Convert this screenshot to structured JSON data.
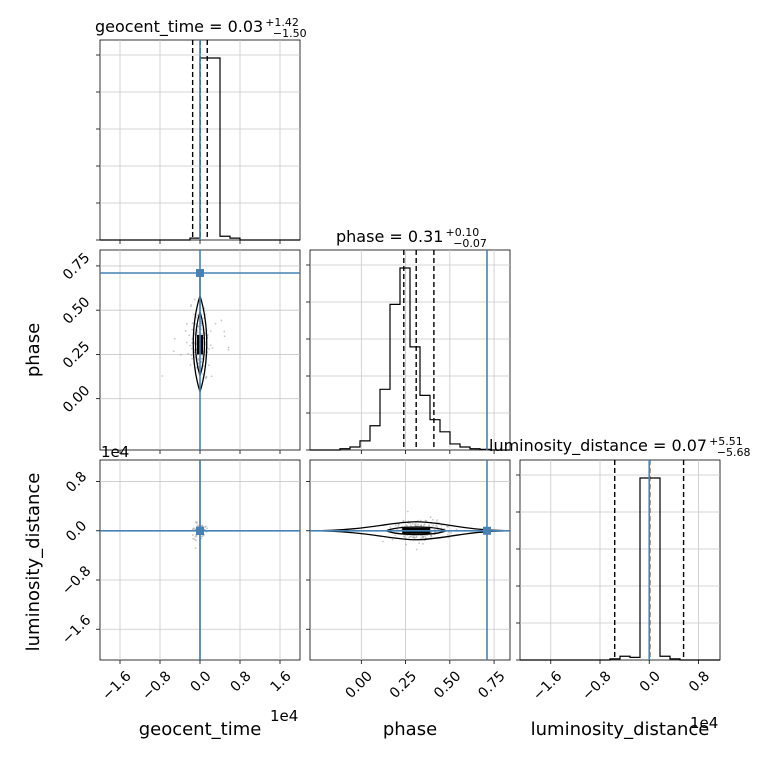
{
  "chart_data": {
    "type": "corner",
    "parameters": [
      "geocent_time",
      "phase",
      "luminosity_distance"
    ],
    "axis_labels": {
      "x": [
        "geocent_time",
        "phase",
        "luminosity_distance"
      ],
      "y": [
        "phase",
        "luminosity_distance"
      ]
    },
    "offset_labels": {
      "geocent_time": "1e4",
      "luminosity_distance": "1e4"
    },
    "titles": [
      {
        "param": "geocent_time",
        "text": "geocent_time = 0.03",
        "upper": "+1.42",
        "lower": "−1.50"
      },
      {
        "param": "phase",
        "text": "phase = 0.31",
        "upper": "+0.10",
        "lower": "−0.07"
      },
      {
        "param": "luminosity_distance",
        "text": "luminosity_distance = 0.07",
        "upper": "+5.51",
        "lower": "−5.68"
      }
    ],
    "ranges": {
      "geocent_time": [
        -20000,
        20000
      ],
      "phase": [
        -0.29,
        0.84
      ],
      "luminosity_distance": [
        -21000,
        11500
      ]
    },
    "ticks": {
      "geocent_time": {
        "values": [
          -16000,
          -8000,
          0,
          8000,
          16000
        ],
        "labels": [
          "−1.6",
          "−0.8",
          "0.0",
          "0.8",
          "1.6"
        ]
      },
      "phase_x": {
        "values": [
          0.0,
          0.25,
          0.5,
          0.75
        ],
        "labels": [
          "0.00",
          "0.25",
          "0.50",
          "0.75"
        ]
      },
      "phase_y": {
        "values": [
          0.0,
          0.25,
          0.5,
          0.75
        ],
        "labels": [
          "0.00",
          "0.25",
          "0.50",
          "0.75"
        ]
      },
      "luminosity_distance_x": {
        "values": [
          -16000,
          -8000,
          0,
          8000
        ],
        "labels": [
          "−1.6",
          "−0.8",
          "0.0",
          "0.8"
        ]
      },
      "luminosity_distance_y": {
        "values": [
          -16000,
          -8000,
          0,
          8000
        ],
        "labels": [
          "−1.6",
          "−0.8",
          "0.0",
          "0.8"
        ]
      }
    },
    "truths": {
      "geocent_time": 0,
      "phase": 0.71,
      "luminosity_distance": 0
    },
    "quantiles": {
      "geocent_time": [
        -1470,
        30,
        1450
      ],
      "phase": [
        0.24,
        0.31,
        0.41
      ],
      "luminosity_distance": [
        -5610,
        70,
        5580
      ]
    },
    "histograms": {
      "geocent_time": {
        "bins": [
          -20000,
          -18000,
          -16000,
          -14000,
          -12000,
          -10000,
          -8000,
          -6000,
          -4000,
          -2000,
          0,
          2000,
          4000,
          6000,
          8000,
          10000,
          12000,
          14000,
          16000,
          18000,
          20000
        ],
        "counts": [
          0,
          0,
          0,
          0,
          0,
          0,
          0,
          0,
          0,
          0.005,
          0.49,
          0.49,
          0.01,
          0.005,
          0,
          0,
          0,
          0,
          0,
          0
        ]
      },
      "phase": {
        "bins": [
          -0.29,
          -0.2335,
          -0.177,
          -0.1205,
          -0.064,
          -0.0075,
          0.049,
          0.1055,
          0.162,
          0.2185,
          0.275,
          0.3315,
          0.388,
          0.4445,
          0.501,
          0.5575,
          0.614,
          0.6705,
          0.727,
          0.7835,
          0.84
        ],
        "counts": [
          0,
          0,
          0,
          0.002,
          0.005,
          0.015,
          0.04,
          0.1,
          0.24,
          0.3,
          0.17,
          0.09,
          0.05,
          0.03,
          0.01,
          0.005,
          0.002,
          0.001,
          0,
          0
        ]
      },
      "luminosity_distance": {
        "bins": [
          -21000,
          -19375,
          -17750,
          -16125,
          -14500,
          -12875,
          -11250,
          -9625,
          -8000,
          -6375,
          -4750,
          -3125,
          -1500,
          125,
          1750,
          3375,
          5000,
          6625,
          8250,
          9875,
          11500
        ],
        "counts": [
          0,
          0,
          0,
          0,
          0,
          0,
          0,
          0,
          0,
          0.003,
          0.01,
          0.007,
          0.49,
          0.49,
          0.01,
          0.003,
          0,
          0,
          0,
          0
        ]
      }
    }
  }
}
